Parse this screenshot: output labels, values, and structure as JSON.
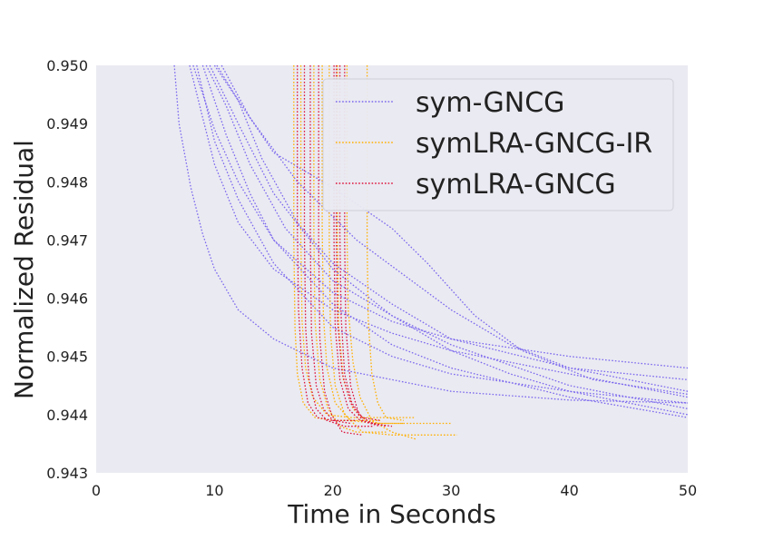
{
  "chart_data": {
    "type": "line",
    "title": "",
    "xlabel": "Time in Seconds",
    "ylabel": "Normalized Residual",
    "xlim": [
      0,
      50
    ],
    "ylim": [
      0.943,
      0.95
    ],
    "xticks": [
      0,
      10,
      20,
      30,
      40,
      50
    ],
    "xtick_labels": [
      "0",
      "10",
      "20",
      "30",
      "40",
      "50"
    ],
    "yticks": [
      0.943,
      0.944,
      0.945,
      0.946,
      0.947,
      0.948,
      0.949,
      0.95
    ],
    "ytick_labels": [
      "0.943",
      "0.944",
      "0.945",
      "0.946",
      "0.947",
      "0.948",
      "0.949",
      "0.950"
    ],
    "grid": false,
    "background": "#eaeaf2",
    "line_style": "dotted",
    "legend": {
      "position": "top-right",
      "entries": [
        {
          "label": "sym-GNCG",
          "color": "#7b68ee"
        },
        {
          "label": "symLRA-GNCG-IR",
          "color": "#ffb000"
        },
        {
          "label": "symLRA-GNCG",
          "color": "#dc143c"
        }
      ]
    },
    "series": [
      {
        "name": "sym-GNCG",
        "color": "#7b68ee",
        "runs": [
          {
            "x": [
              6.6,
              7,
              8,
              9,
              10,
              12,
              15,
              20,
              30,
              40,
              50
            ],
            "y": [
              0.95,
              0.949,
              0.9479,
              0.9471,
              0.9465,
              0.9458,
              0.9453,
              0.9448,
              0.9444,
              0.94425,
              0.9442
            ]
          },
          {
            "x": [
              7.9,
              9,
              10,
              12,
              15,
              20,
              25,
              30,
              40,
              50
            ],
            "y": [
              0.95,
              0.9491,
              0.9483,
              0.9473,
              0.9465,
              0.9458,
              0.9454,
              0.9451,
              0.9447,
              0.9443
            ]
          },
          {
            "x": [
              8.2,
              10,
              12,
              15,
              20,
              25,
              30,
              40,
              50
            ],
            "y": [
              0.95,
              0.9489,
              0.948,
              0.947,
              0.9461,
              0.9456,
              0.9453,
              0.945,
              0.9448
            ]
          },
          {
            "x": [
              8.5,
              10,
              12,
              15,
              20,
              25,
              30,
              40,
              50
            ],
            "y": [
              0.95,
              0.9487,
              0.9477,
              0.9466,
              0.9455,
              0.945,
              0.9447,
              0.9444,
              0.9442
            ]
          },
          {
            "x": [
              9.0,
              11,
              13,
              15,
              20,
              25,
              30,
              40,
              50
            ],
            "y": [
              0.95,
              0.9488,
              0.9478,
              0.947,
              0.9459,
              0.9452,
              0.9448,
              0.9443,
              0.94395
            ]
          },
          {
            "x": [
              9.3,
              11,
              13,
              16,
              20,
              25,
              30,
              40,
              50
            ],
            "y": [
              0.95,
              0.9493,
              0.9483,
              0.9472,
              0.9463,
              0.9457,
              0.9452,
              0.9445,
              0.9441
            ]
          },
          {
            "x": [
              9.6,
              12,
              15,
              20,
              25,
              30,
              35,
              40,
              50
            ],
            "y": [
              0.95,
              0.949,
              0.9478,
              0.9465,
              0.9457,
              0.9451,
              0.9447,
              0.9444,
              0.944
            ]
          },
          {
            "x": [
              10.0,
              12,
              14,
              17,
              20,
              25,
              30,
              40,
              50
            ],
            "y": [
              0.95,
              0.9494,
              0.9484,
              0.9473,
              0.9466,
              0.9459,
              0.9453,
              0.9448,
              0.9446
            ]
          },
          {
            "x": [
              10.2,
              12,
              15,
              20,
              25,
              28,
              32,
              36,
              42,
              50
            ],
            "y": [
              0.95,
              0.9494,
              0.9485,
              0.9479,
              0.9472,
              0.9466,
              0.9457,
              0.9451,
              0.9446,
              0.94435
            ]
          },
          {
            "x": [
              10.6,
              13,
              17,
              22,
              26,
              30,
              35,
              40,
              50
            ],
            "y": [
              0.95,
              0.9491,
              0.948,
              0.947,
              0.9464,
              0.9458,
              0.9452,
              0.9448,
              0.9444
            ]
          }
        ]
      },
      {
        "name": "symLRA-GNCG-IR",
        "color": "#ffb000",
        "runs": [
          {
            "x": [
              16.7,
              16.7,
              16.8,
              17.0,
              17.5,
              18.5,
              20.0,
              24.0
            ],
            "y": [
              0.95,
              0.947,
              0.9455,
              0.9447,
              0.9442,
              0.94395,
              0.9439,
              0.9439
            ]
          },
          {
            "x": [
              17.3,
              17.3,
              17.4,
              17.7,
              18.3,
              19.5,
              21.5,
              27.0
            ],
            "y": [
              0.95,
              0.947,
              0.9456,
              0.9448,
              0.9443,
              0.944,
              0.94395,
              0.94395
            ]
          },
          {
            "x": [
              19.1,
              19.1,
              19.2,
              19.5,
              20.2,
              21.5,
              23.5,
              30.0
            ],
            "y": [
              0.95,
              0.9472,
              0.9457,
              0.9448,
              0.9442,
              0.9439,
              0.94385,
              0.94385
            ]
          },
          {
            "x": [
              19.7,
              19.7,
              19.8,
              20.2,
              21.0,
              22.5,
              25.0,
              30.5
            ],
            "y": [
              0.95,
              0.947,
              0.9454,
              0.9445,
              0.944,
              0.9437,
              0.94365,
              0.94365
            ]
          },
          {
            "x": [
              20.4,
              20.4,
              20.5,
              20.9,
              21.7,
              22.8,
              24.0,
              26.0
            ],
            "y": [
              0.95,
              0.947,
              0.9455,
              0.9446,
              0.9441,
              0.9439,
              0.94385,
              0.94385
            ]
          },
          {
            "x": [
              21.2,
              21.2,
              21.3,
              21.7,
              22.3,
              23.3,
              25.0,
              27.0
            ],
            "y": [
              0.95,
              0.9471,
              0.9458,
              0.9449,
              0.9443,
              0.9439,
              0.9437,
              0.94358
            ]
          },
          {
            "x": [
              22.9,
              22.9,
              23.0,
              23.3,
              23.8,
              24.5,
              26.0
            ],
            "y": [
              0.95,
              0.9469,
              0.9456,
              0.9447,
              0.9442,
              0.94395,
              0.9439
            ]
          },
          {
            "x": [
              18.4,
              18.4,
              18.5,
              18.9,
              19.6,
              20.6,
              22.0,
              24.5
            ],
            "y": [
              0.95,
              0.9471,
              0.9456,
              0.9446,
              0.9441,
              0.9438,
              0.9437,
              0.9437
            ]
          }
        ]
      },
      {
        "name": "symLRA-GNCG",
        "color": "#dc143c",
        "runs": [
          {
            "x": [
              17.0,
              17.0,
              17.1,
              17.4,
              17.9,
              18.7,
              20.0,
              22.0
            ],
            "y": [
              0.95,
              0.9472,
              0.9458,
              0.9448,
              0.9442,
              0.94395,
              0.9439,
              0.9439
            ]
          },
          {
            "x": [
              17.6,
              17.6,
              17.7,
              18.0,
              18.6,
              19.5,
              21.0,
              23.5
            ],
            "y": [
              0.95,
              0.9471,
              0.9455,
              0.9446,
              0.9441,
              0.9439,
              0.9438,
              0.9438
            ]
          },
          {
            "x": [
              18.1,
              18.1,
              18.2,
              18.6,
              19.2,
              20.0,
              21.5
            ],
            "y": [
              0.95,
              0.947,
              0.9454,
              0.9445,
              0.9441,
              0.9439,
              0.94385
            ]
          },
          {
            "x": [
              20.1,
              20.1,
              20.2,
              20.6,
              21.3,
              22.3,
              24.0
            ],
            "y": [
              0.95,
              0.947,
              0.9455,
              0.9446,
              0.9441,
              0.9439,
              0.9438
            ]
          },
          {
            "x": [
              20.6,
              20.6,
              20.7,
              21.0,
              21.6,
              22.5,
              24.0
            ],
            "y": [
              0.95,
              0.9471,
              0.9457,
              0.9447,
              0.9442,
              0.94395,
              0.9439
            ]
          },
          {
            "x": [
              21.0,
              21.0,
              21.1,
              21.5,
              22.2,
              23.3,
              25.0
            ],
            "y": [
              0.95,
              0.947,
              0.9455,
              0.9445,
              0.944,
              0.94385,
              0.9438
            ]
          },
          {
            "x": [
              18.8,
              18.8,
              18.9,
              19.3,
              19.9,
              20.8,
              22.5
            ],
            "y": [
              0.95,
              0.9469,
              0.9453,
              0.9444,
              0.944,
              0.9437,
              0.94365
            ]
          },
          {
            "x": [
              20.3,
              20.3,
              20.4,
              20.8,
              21.5,
              22.5,
              24.5
            ],
            "y": [
              0.95,
              0.947,
              0.9456,
              0.9447,
              0.9442,
              0.9439,
              0.9438
            ]
          }
        ]
      }
    ]
  }
}
